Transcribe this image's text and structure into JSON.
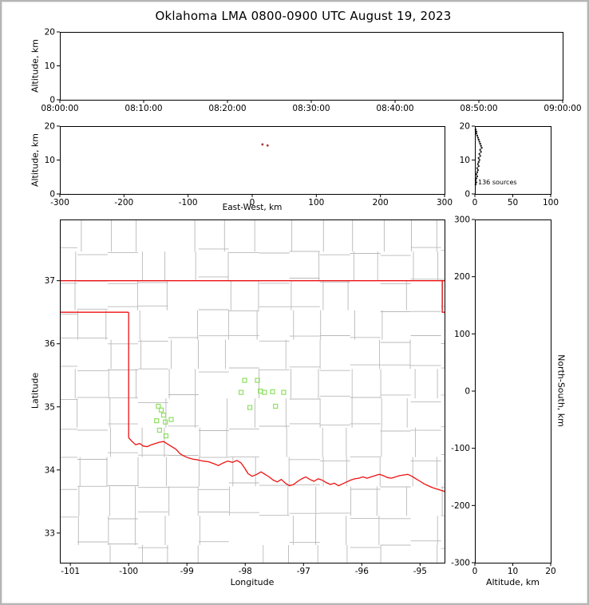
{
  "title": "Oklahoma LMA 0800-0900 UTC August 19, 2023",
  "colors": {
    "state_border": "#ee1111",
    "county_lines": "#b9b9b9",
    "flash_marker": "#8ce05f",
    "source_point": "#aa3939",
    "profile_point": "#141414",
    "figure_border": "#b5b5b5"
  },
  "chart_data": [
    {
      "id": "altitude_vs_time",
      "type": "scatter",
      "ylabel": "Altitude, km",
      "xticks": [
        "08:00:00",
        "08:10:00",
        "08:20:00",
        "08:30:00",
        "08:40:00",
        "08:50:00",
        "09:00:00"
      ],
      "yticks": [
        "0",
        "10",
        "20"
      ],
      "ylim": [
        0,
        20
      ],
      "points": []
    },
    {
      "id": "altitude_vs_east_west",
      "type": "scatter",
      "xlabel": "East-West, km",
      "ylabel": "Altitude, km",
      "xticks": [
        "-300",
        "-200",
        "-100",
        "0",
        "100",
        "200",
        "300"
      ],
      "yticks": [
        "0",
        "10",
        "20"
      ],
      "xlim": [
        -300,
        300
      ],
      "ylim": [
        0,
        20
      ],
      "points": [
        [
          16,
          14.6
        ],
        [
          24,
          14.3
        ]
      ]
    },
    {
      "id": "source_altitude_profile",
      "type": "scatter",
      "annotation": "136 sources",
      "xticks": [
        "0",
        "50",
        "100"
      ],
      "yticks": [
        "0",
        "10",
        "20"
      ],
      "xlim": [
        0,
        100
      ],
      "ylim": [
        0,
        20
      ],
      "points": [
        [
          1,
          2.8
        ],
        [
          2,
          3.4
        ],
        [
          1,
          4.0
        ],
        [
          2,
          4.6
        ],
        [
          3,
          5.2
        ],
        [
          2,
          5.8
        ],
        [
          3,
          6.4
        ],
        [
          4,
          7.0
        ],
        [
          3,
          7.6
        ],
        [
          5,
          8.2
        ],
        [
          4,
          8.8
        ],
        [
          5,
          9.4
        ],
        [
          6,
          10.0
        ],
        [
          5,
          10.6
        ],
        [
          7,
          11.2
        ],
        [
          6,
          11.8
        ],
        [
          8,
          12.4
        ],
        [
          7,
          13.0
        ],
        [
          9,
          13.6
        ],
        [
          8,
          14.2
        ],
        [
          7,
          14.8
        ],
        [
          6,
          15.4
        ],
        [
          5,
          16.0
        ],
        [
          4,
          16.6
        ],
        [
          3,
          17.2
        ],
        [
          2,
          17.8
        ],
        [
          2,
          18.4
        ],
        [
          1,
          19.0
        ]
      ]
    },
    {
      "id": "map_plan_view",
      "type": "scatter",
      "xlabel": "Longitude",
      "ylabel": "Latitude",
      "xticks": [
        "-101",
        "-100",
        "-99",
        "-98",
        "-97",
        "-96",
        "-95"
      ],
      "yticks": [
        "33",
        "34",
        "35",
        "36",
        "37"
      ],
      "xlim": [
        -101.18,
        -94.58
      ],
      "ylim": [
        32.53,
        37.97
      ],
      "flash_points": [
        [
          -98.01,
          35.42
        ],
        [
          -97.79,
          35.42
        ],
        [
          -98.07,
          35.23
        ],
        [
          -97.74,
          35.25
        ],
        [
          -97.67,
          35.23
        ],
        [
          -97.53,
          35.24
        ],
        [
          -97.34,
          35.23
        ],
        [
          -97.92,
          34.99
        ],
        [
          -97.48,
          35.01
        ],
        [
          -99.49,
          35.01
        ],
        [
          -99.44,
          34.95
        ],
        [
          -99.4,
          34.87
        ],
        [
          -99.52,
          34.78
        ],
        [
          -99.37,
          34.76
        ],
        [
          -99.27,
          34.8
        ],
        [
          -99.47,
          34.63
        ],
        [
          -99.36,
          34.54
        ]
      ],
      "state_boundary": [
        {
          "name": "kansas-border-lat-37",
          "pts": [
            [
              -101.18,
              37.0
            ],
            [
              -94.58,
              37.0
            ]
          ]
        },
        {
          "name": "panhandle-border-lat-36-5",
          "pts": [
            [
              -101.18,
              36.5
            ],
            [
              -100.0,
              36.5
            ]
          ]
        },
        {
          "name": "texas-border-lon-100",
          "pts": [
            [
              -100.0,
              36.5
            ],
            [
              -100.0,
              34.51
            ]
          ]
        },
        {
          "name": "missouri-corner",
          "pts": [
            [
              -94.62,
              37.0
            ],
            [
              -94.62,
              36.5
            ],
            [
              -94.58,
              36.5
            ]
          ]
        },
        {
          "name": "red-river-south-border",
          "pts": [
            [
              -100.0,
              34.51
            ],
            [
              -99.94,
              34.45
            ],
            [
              -99.88,
              34.4
            ],
            [
              -99.81,
              34.42
            ],
            [
              -99.75,
              34.38
            ],
            [
              -99.68,
              34.37
            ],
            [
              -99.61,
              34.4
            ],
            [
              -99.54,
              34.42
            ],
            [
              -99.47,
              34.44
            ],
            [
              -99.4,
              34.45
            ],
            [
              -99.33,
              34.41
            ],
            [
              -99.26,
              34.37
            ],
            [
              -99.19,
              34.33
            ],
            [
              -99.12,
              34.26
            ],
            [
              -99.05,
              34.22
            ],
            [
              -98.97,
              34.19
            ],
            [
              -98.89,
              34.17
            ],
            [
              -98.81,
              34.16
            ],
            [
              -98.72,
              34.14
            ],
            [
              -98.63,
              34.13
            ],
            [
              -98.54,
              34.1
            ],
            [
              -98.46,
              34.07
            ],
            [
              -98.38,
              34.11
            ],
            [
              -98.3,
              34.14
            ],
            [
              -98.22,
              34.12
            ],
            [
              -98.14,
              34.15
            ],
            [
              -98.07,
              34.11
            ],
            [
              -98.01,
              34.03
            ],
            [
              -97.95,
              33.94
            ],
            [
              -97.88,
              33.9
            ],
            [
              -97.8,
              33.93
            ],
            [
              -97.73,
              33.97
            ],
            [
              -97.66,
              33.93
            ],
            [
              -97.59,
              33.89
            ],
            [
              -97.52,
              33.84
            ],
            [
              -97.45,
              33.81
            ],
            [
              -97.38,
              33.85
            ],
            [
              -97.31,
              33.79
            ],
            [
              -97.24,
              33.75
            ],
            [
              -97.17,
              33.77
            ],
            [
              -97.1,
              33.82
            ],
            [
              -97.03,
              33.86
            ],
            [
              -96.96,
              33.89
            ],
            [
              -96.89,
              33.85
            ],
            [
              -96.82,
              33.82
            ],
            [
              -96.75,
              33.86
            ],
            [
              -96.68,
              33.84
            ],
            [
              -96.61,
              33.8
            ],
            [
              -96.54,
              33.77
            ],
            [
              -96.47,
              33.79
            ],
            [
              -96.4,
              33.75
            ],
            [
              -96.33,
              33.78
            ],
            [
              -96.26,
              33.81
            ],
            [
              -96.19,
              33.84
            ],
            [
              -96.12,
              33.86
            ],
            [
              -96.05,
              33.87
            ],
            [
              -95.98,
              33.89
            ],
            [
              -95.91,
              33.87
            ],
            [
              -95.84,
              33.89
            ],
            [
              -95.77,
              33.91
            ],
            [
              -95.7,
              33.93
            ],
            [
              -95.63,
              33.91
            ],
            [
              -95.56,
              33.88
            ],
            [
              -95.49,
              33.87
            ],
            [
              -95.42,
              33.89
            ],
            [
              -95.35,
              33.91
            ],
            [
              -95.28,
              33.92
            ],
            [
              -95.21,
              33.93
            ],
            [
              -95.14,
              33.9
            ],
            [
              -95.07,
              33.86
            ],
            [
              -95.0,
              33.82
            ],
            [
              -94.93,
              33.78
            ],
            [
              -94.86,
              33.75
            ],
            [
              -94.79,
              33.72
            ],
            [
              -94.72,
              33.7
            ],
            [
              -94.65,
              33.68
            ],
            [
              -94.58,
              33.66
            ]
          ]
        }
      ]
    },
    {
      "id": "altitude_vs_north_south",
      "type": "scatter",
      "xlabel": "Altitude, km",
      "ylabel": "North-South, km",
      "xticks": [
        "0",
        "10",
        "20"
      ],
      "yticks": [
        "300",
        "200",
        "100",
        "0",
        "-100",
        "-200",
        "-300"
      ],
      "xlim": [
        0,
        20
      ],
      "ylim": [
        -300,
        300
      ],
      "points": []
    }
  ]
}
